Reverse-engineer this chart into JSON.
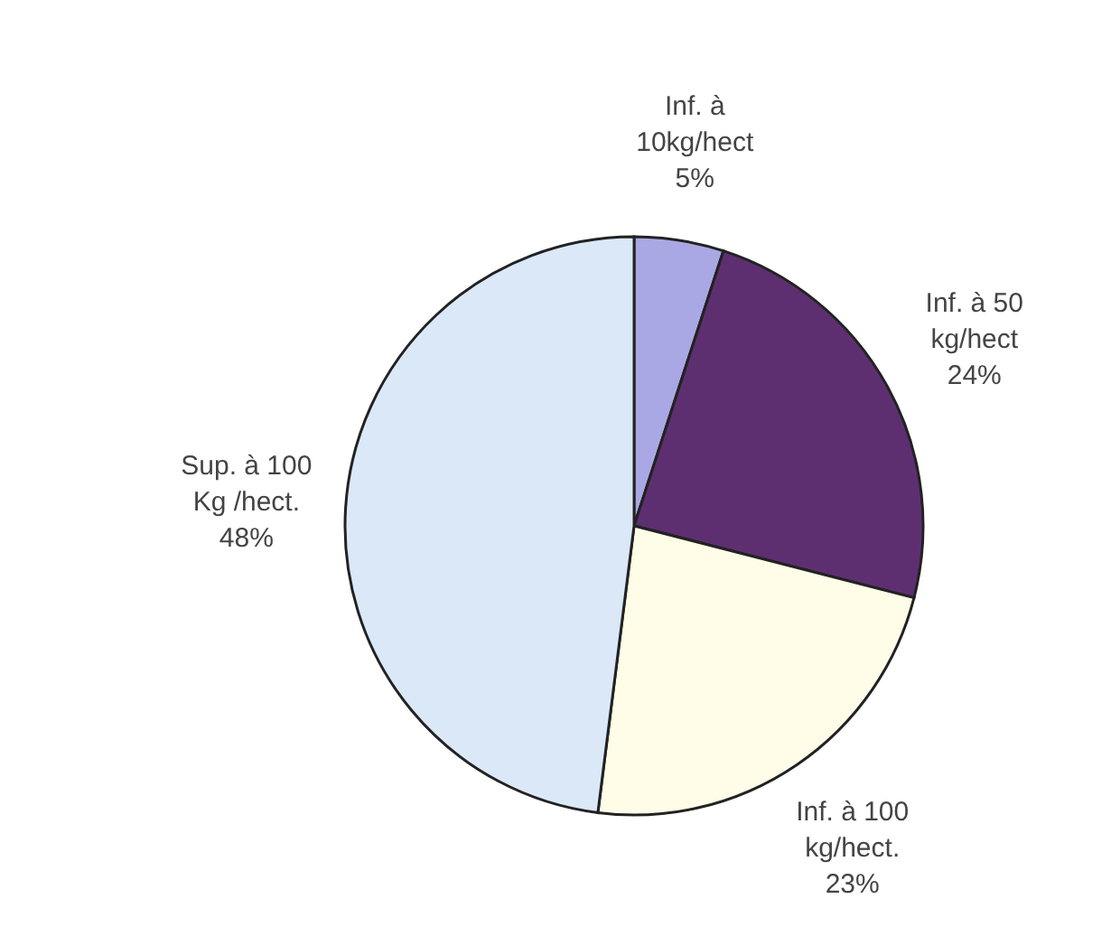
{
  "chart_data": {
    "type": "pie",
    "categories": [
      "Inf. à 10kg/hect",
      "Inf. à 50 kg/hect",
      "Inf. à 100 kg/hect.",
      "Sup. à 100 Kg /hect."
    ],
    "values": [
      5,
      24,
      23,
      48
    ],
    "value_labels": [
      "5%",
      "24%",
      "23%",
      "48%"
    ],
    "colors": [
      "#aaa8e4",
      "#5e2f70",
      "#fffde8",
      "#dae8f8"
    ]
  }
}
